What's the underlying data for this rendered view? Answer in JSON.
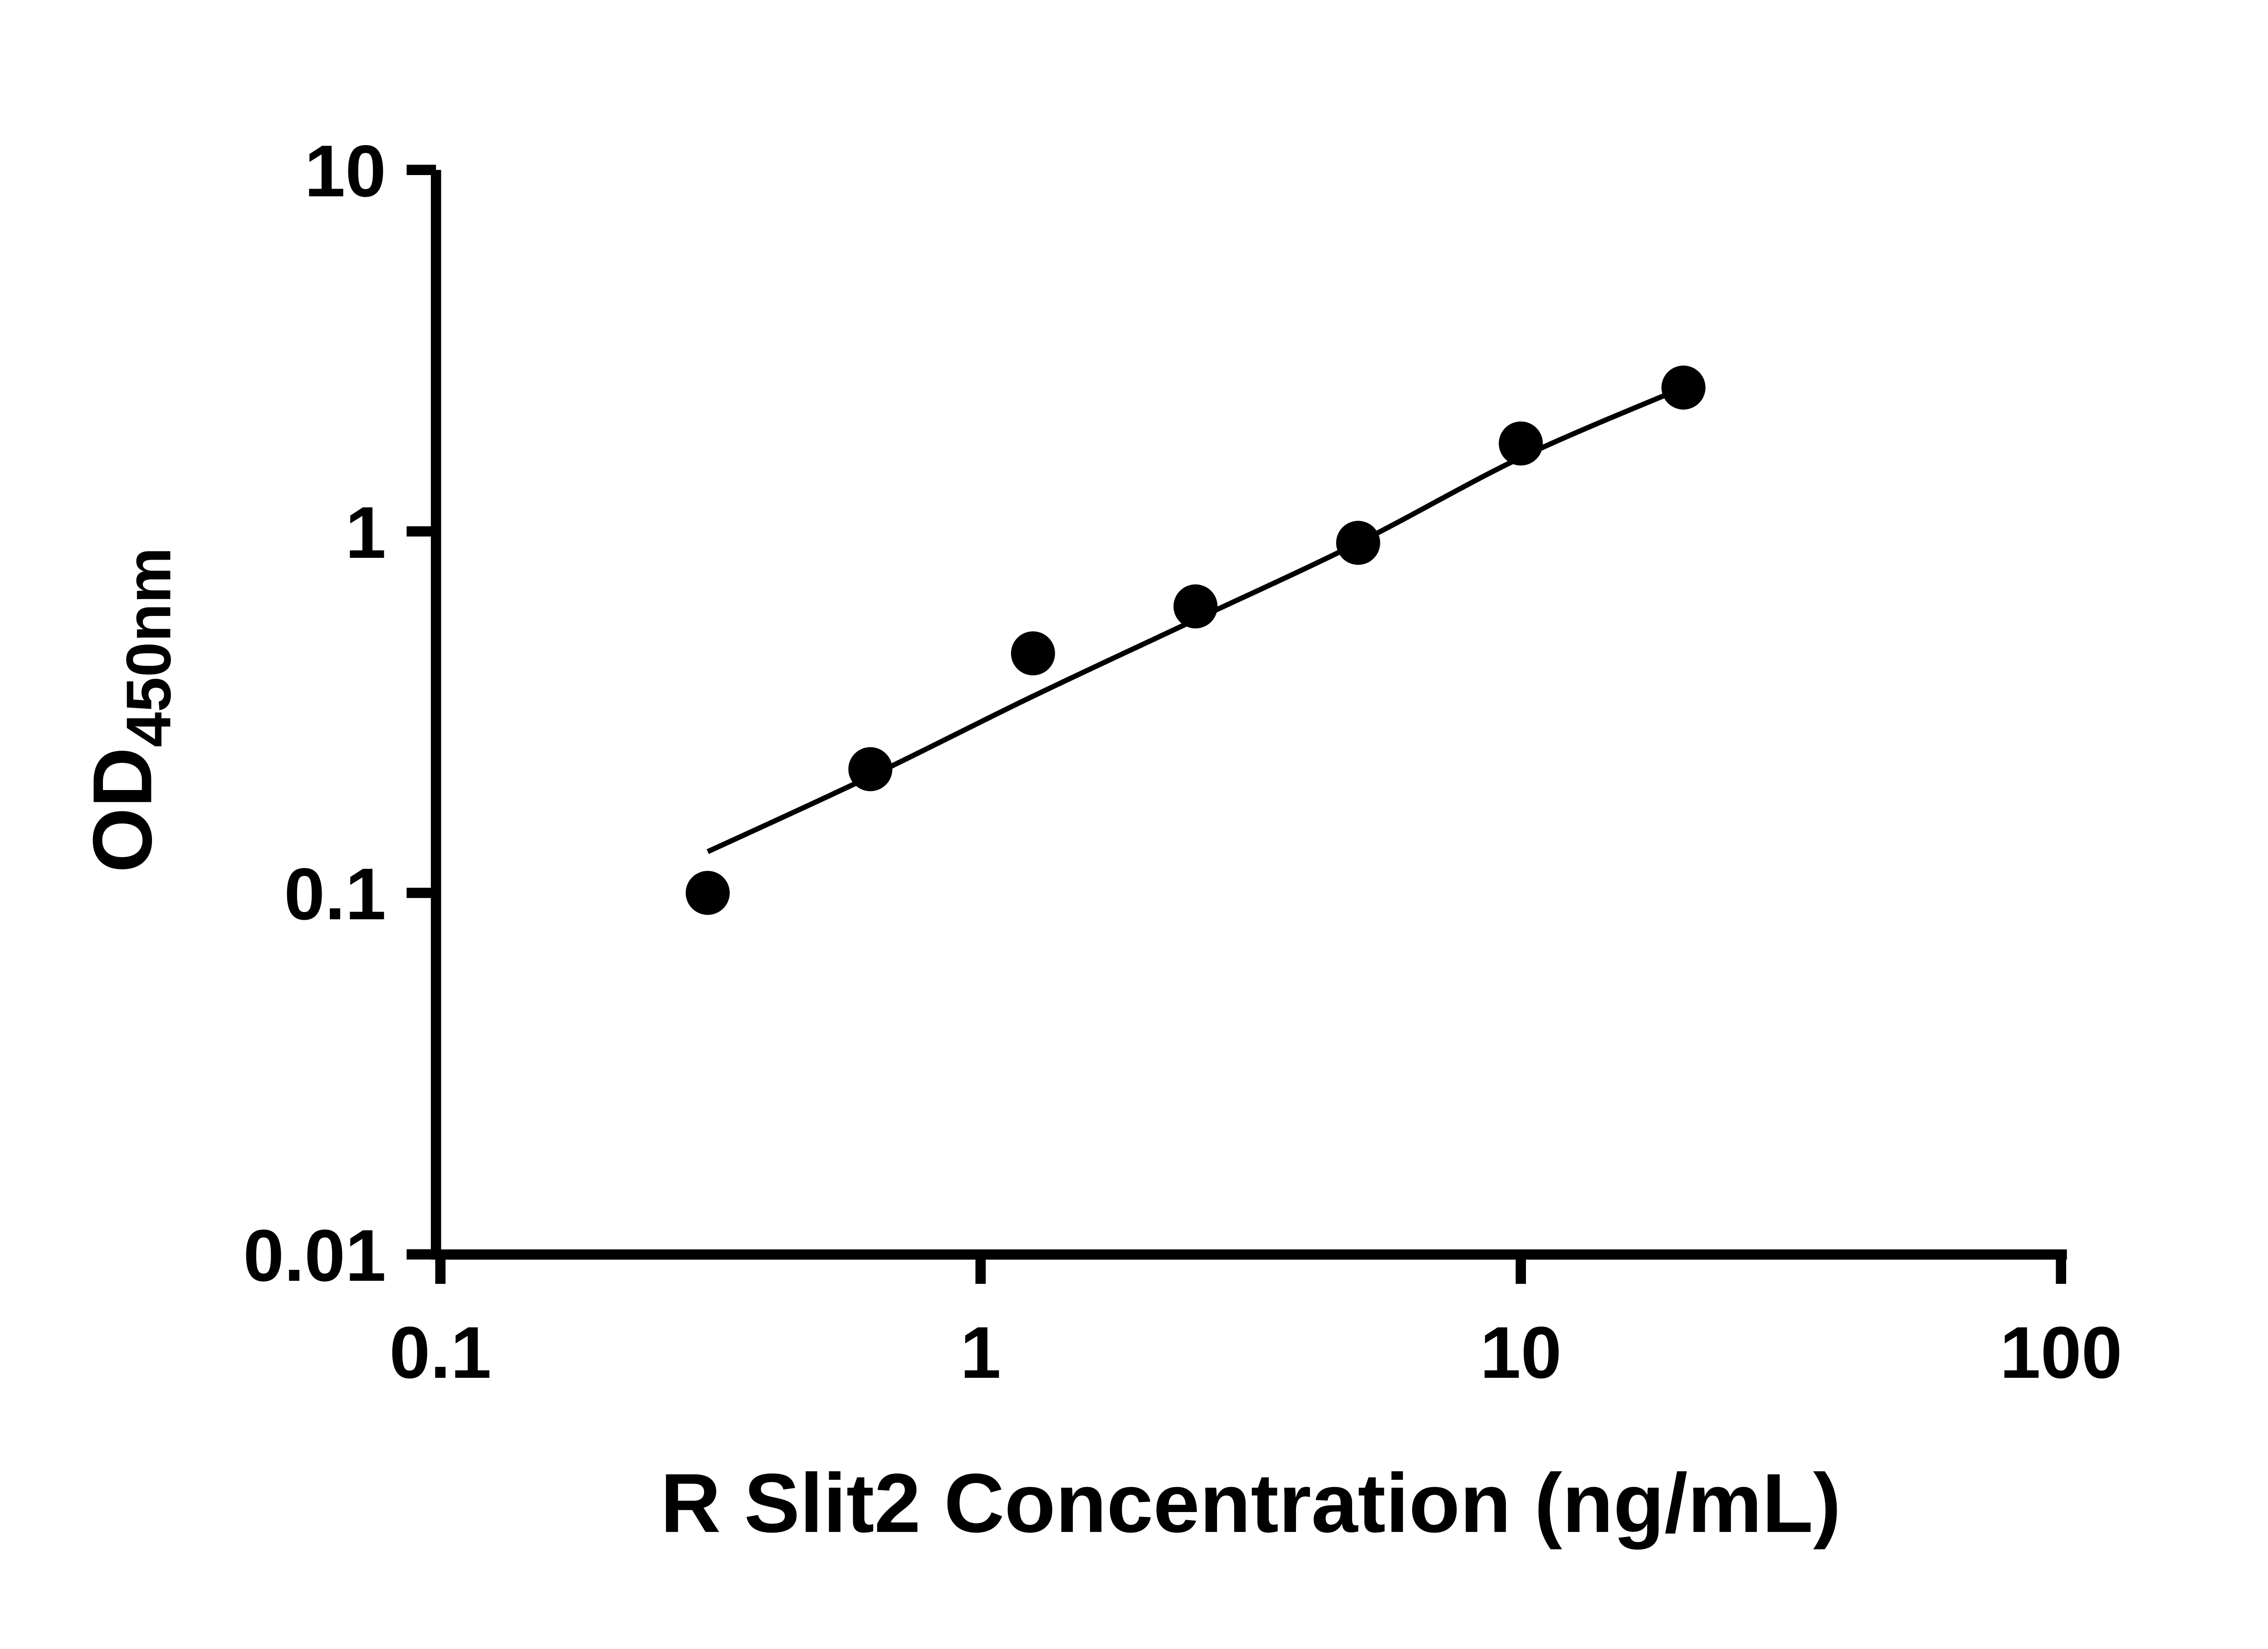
{
  "page": {
    "background": "#ffffff"
  },
  "chart_data": {
    "type": "scatter",
    "title": "",
    "xlabel": "R Slit2 Concentration (ng/mL)",
    "ylabel_main": "OD",
    "ylabel_sub": "450nm",
    "x_scale": "log",
    "y_scale": "log",
    "xlim": [
      0.1,
      100
    ],
    "ylim": [
      0.01,
      10
    ],
    "grid": false,
    "legend": "none",
    "axis_color": "#000000",
    "x_ticks": [
      {
        "value": 0.1,
        "label": "0.1"
      },
      {
        "value": 1,
        "label": "1"
      },
      {
        "value": 10,
        "label": "10"
      },
      {
        "value": 100,
        "label": "100"
      }
    ],
    "y_ticks": [
      {
        "value": 10,
        "label": "10"
      },
      {
        "value": 1,
        "label": "1"
      },
      {
        "value": 0.1,
        "label": "0.1"
      },
      {
        "value": 0.01,
        "label": "0.01"
      }
    ],
    "series": [
      {
        "name": "standard-curve-points",
        "marker": "circle",
        "color": "#000000",
        "points": [
          [
            0.3125,
            0.1
          ],
          [
            0.625,
            0.22
          ],
          [
            1.25,
            0.46
          ],
          [
            2.5,
            0.62
          ],
          [
            5,
            0.93
          ],
          [
            10,
            1.75
          ],
          [
            20,
            2.5
          ]
        ]
      }
    ],
    "trend_line": {
      "color": "#000000",
      "points": [
        [
          0.3125,
          0.13
        ],
        [
          0.625,
          0.21
        ],
        [
          1.25,
          0.35
        ],
        [
          2.5,
          0.57
        ],
        [
          5,
          0.93
        ],
        [
          10,
          1.6
        ],
        [
          20,
          2.5
        ]
      ]
    }
  }
}
